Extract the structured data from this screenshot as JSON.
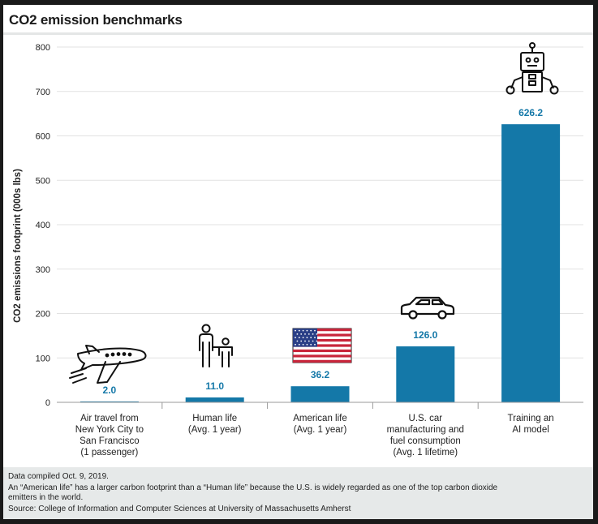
{
  "page": {
    "background": "#1a1a1a",
    "card_background": "#ffffff",
    "footer_background": "#e6e9e9"
  },
  "chart_data": {
    "type": "bar",
    "title": "CO2 emission benchmarks",
    "ylabel": "CO2 emissions footprint (000s lbs)",
    "xlabel": "",
    "ylim": [
      0,
      800
    ],
    "yticks": [
      0,
      100,
      200,
      300,
      400,
      500,
      600,
      700,
      800
    ],
    "grid": true,
    "bar_color": "#1478a8",
    "value_label_color": "#1478a8",
    "categories": [
      [
        "Air travel from",
        "New York City to",
        "San Francisco",
        "(1 passenger)"
      ],
      [
        "Human life",
        "(Avg. 1 year)"
      ],
      [
        "American life",
        "(Avg. 1 year)"
      ],
      [
        "U.S. car",
        "manufacturing and",
        "fuel consumption",
        "(Avg. 1 lifetime)"
      ],
      [
        "Training an",
        "AI model"
      ]
    ],
    "values": [
      2.0,
      11.0,
      36.2,
      126.0,
      626.2
    ],
    "value_labels": [
      "2.0",
      "11.0",
      "36.2",
      "126.0",
      "626.2"
    ],
    "icons": [
      "airplane-icon",
      "person-with-child-icon",
      "us-flag-icon",
      "car-icon",
      "robot-icon"
    ]
  },
  "footer": {
    "line1": "Data compiled Oct. 9, 2019.",
    "line2": "An “American life” has a larger carbon footprint than a “Human life” because the U.S. is widely regarded as one of the top carbon dioxide",
    "line3": "emitters in the world.",
    "line4": "Source: College of Information and Computer Sciences at University of Massachusetts Amherst"
  }
}
